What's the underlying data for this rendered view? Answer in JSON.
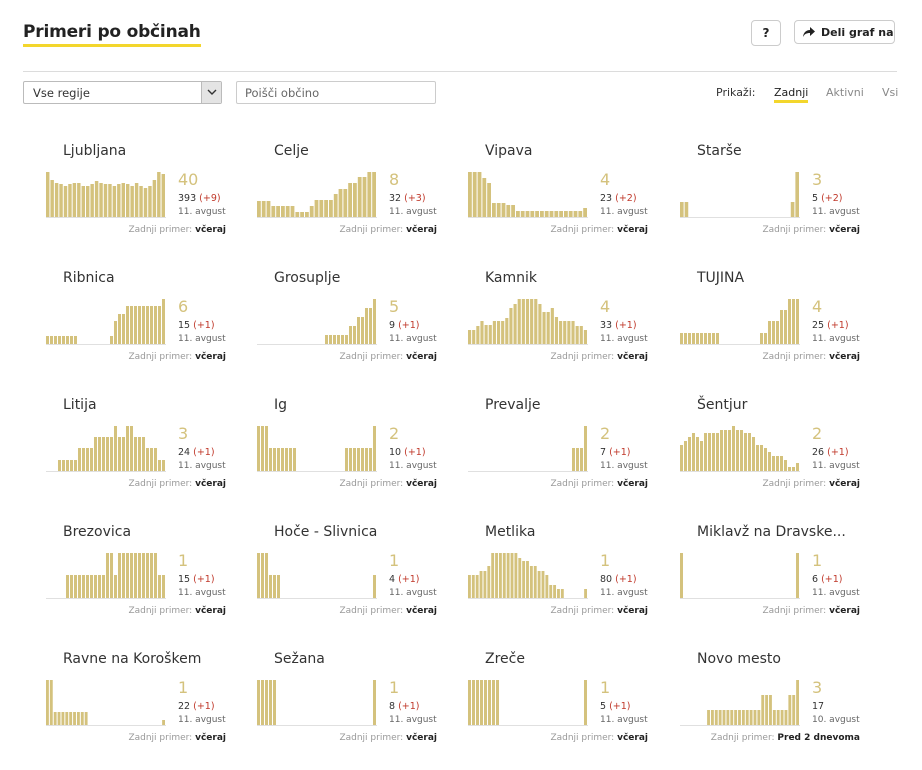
{
  "header": {
    "title": "Primeri po občinah",
    "help_label": "?",
    "share_label": "Deli graf na"
  },
  "controls": {
    "region_select": "Vse regije",
    "search_placeholder": "Poišči občino"
  },
  "filter": {
    "label": "Prikaži:",
    "options": [
      "Zadnji",
      "Aktivni",
      "Vsi"
    ],
    "active": "Zadnji"
  },
  "last_case_label": "Zadnji primer:",
  "colors": {
    "bar": "#d4c27d",
    "increase": "#c0392b",
    "accent": "#f3d62c"
  },
  "municipalities": [
    {
      "name": "Ljubljana",
      "current": "40",
      "total": "393",
      "delta": "(+9)",
      "date": "11. avgust",
      "last": "včeraj",
      "bars": [
        29,
        24,
        22,
        21,
        20,
        21,
        22,
        22,
        20,
        20,
        21,
        23,
        22,
        21,
        21,
        20,
        21,
        22,
        21,
        20,
        22,
        20,
        19,
        20,
        24,
        29,
        28
      ]
    },
    {
      "name": "Celje",
      "current": "8",
      "total": "32",
      "delta": "(+3)",
      "date": "11. avgust",
      "last": "včeraj",
      "bars": [
        10,
        10,
        10,
        7,
        7,
        7,
        7,
        7,
        3,
        3,
        3,
        7,
        11,
        11,
        11,
        11,
        15,
        18,
        18,
        22,
        22,
        26,
        26,
        29,
        29
      ]
    },
    {
      "name": "Vipava",
      "current": "4",
      "total": "23",
      "delta": "(+2)",
      "date": "11. avgust",
      "last": "včeraj",
      "bars": [
        29,
        29,
        29,
        25,
        22,
        9,
        9,
        9,
        8,
        8,
        4,
        4,
        4,
        4,
        4,
        4,
        4,
        4,
        4,
        4,
        4,
        4,
        4,
        4,
        6
      ]
    },
    {
      "name": "Starše",
      "current": "3",
      "total": "5",
      "delta": "(+2)",
      "date": "11. avgust",
      "last": "včeraj",
      "bars": [
        1,
        1,
        0,
        0,
        0,
        0,
        0,
        0,
        0,
        0,
        0,
        0,
        0,
        0,
        0,
        0,
        0,
        0,
        0,
        0,
        0,
        0,
        0,
        0,
        1,
        3
      ]
    },
    {
      "name": "Ribnica",
      "current": "6",
      "total": "15",
      "delta": "(+1)",
      "date": "11. avgust",
      "last": "včeraj",
      "bars": [
        1,
        1,
        1,
        1,
        1,
        1,
        1,
        1,
        0,
        0,
        0,
        0,
        0,
        0,
        0,
        0,
        1,
        3,
        4,
        4,
        5,
        5,
        5,
        5,
        5,
        5,
        5,
        5,
        5,
        6
      ]
    },
    {
      "name": "Grosuplje",
      "current": "5",
      "total": "9",
      "delta": "(+1)",
      "date": "11. avgust",
      "last": "včeraj",
      "bars": [
        0,
        0,
        0,
        0,
        0,
        0,
        0,
        0,
        0,
        0,
        0,
        0,
        0,
        0,
        0,
        0,
        0,
        1,
        1,
        1,
        1,
        1,
        1,
        2,
        2,
        3,
        3,
        4,
        4,
        5
      ]
    },
    {
      "name": "Kamnik",
      "current": "4",
      "total": "33",
      "delta": "(+1)",
      "date": "11. avgust",
      "last": "včeraj",
      "bars": [
        12,
        12,
        15,
        19,
        16,
        16,
        19,
        19,
        19,
        22,
        30,
        34,
        38,
        38,
        38,
        38,
        38,
        34,
        27,
        27,
        30,
        23,
        19,
        19,
        19,
        19,
        15,
        15,
        12
      ]
    },
    {
      "name": "TUJINA",
      "current": "4",
      "total": "25",
      "delta": "(+1)",
      "date": "11. avgust",
      "last": "včeraj",
      "bars": [
        1,
        1,
        1,
        1,
        1,
        1,
        1,
        1,
        1,
        1,
        0,
        0,
        0,
        0,
        0,
        0,
        0,
        0,
        0,
        0,
        1,
        1,
        2,
        2,
        2,
        3,
        3,
        4,
        4,
        4
      ]
    },
    {
      "name": "Litija",
      "current": "3",
      "total": "24",
      "delta": "(+1)",
      "date": "11. avgust",
      "last": "včeraj",
      "bars": [
        0,
        0,
        0,
        1,
        1,
        1,
        1,
        1,
        2,
        2,
        2,
        2,
        3,
        3,
        3,
        3,
        3,
        4,
        3,
        3,
        4,
        4,
        3,
        3,
        3,
        2,
        2,
        2,
        1,
        1
      ]
    },
    {
      "name": "Ig",
      "current": "2",
      "total": "10",
      "delta": "(+1)",
      "date": "11. avgust",
      "last": "včeraj",
      "bars": [
        2,
        2,
        2,
        1,
        1,
        1,
        1,
        1,
        1,
        1,
        0,
        0,
        0,
        0,
        0,
        0,
        0,
        0,
        0,
        0,
        0,
        0,
        1,
        1,
        1,
        1,
        1,
        1,
        1,
        2
      ]
    },
    {
      "name": "Prevalje",
      "current": "2",
      "total": "7",
      "delta": "(+1)",
      "date": "11. avgust",
      "last": "včeraj",
      "bars": [
        0,
        0,
        0,
        0,
        0,
        0,
        0,
        0,
        0,
        0,
        0,
        0,
        0,
        0,
        0,
        0,
        0,
        0,
        0,
        0,
        0,
        0,
        0,
        0,
        0,
        0,
        1,
        1,
        1,
        2
      ]
    },
    {
      "name": "Šentjur",
      "current": "2",
      "total": "26",
      "delta": "(+1)",
      "date": "11. avgust",
      "last": "včeraj",
      "bars": [
        7,
        8,
        9,
        10,
        9,
        8,
        10,
        10,
        10,
        10,
        11,
        11,
        11,
        12,
        11,
        11,
        10,
        10,
        9,
        7,
        7,
        6,
        5,
        4,
        4,
        4,
        3,
        1,
        1,
        2
      ]
    },
    {
      "name": "Brezovica",
      "current": "1",
      "total": "15",
      "delta": "(+1)",
      "date": "11. avgust",
      "last": "včeraj",
      "bars": [
        0,
        0,
        0,
        0,
        0,
        1,
        1,
        1,
        1,
        1,
        1,
        1,
        1,
        1,
        1,
        2,
        2,
        1,
        2,
        2,
        2,
        2,
        2,
        2,
        2,
        2,
        2,
        2,
        1,
        1
      ]
    },
    {
      "name": "Hoče - Slivnica",
      "current": "1",
      "total": "4",
      "delta": "(+1)",
      "date": "11. avgust",
      "last": "včeraj",
      "bars": [
        2,
        2,
        2,
        1,
        1,
        1,
        0,
        0,
        0,
        0,
        0,
        0,
        0,
        0,
        0,
        0,
        0,
        0,
        0,
        0,
        0,
        0,
        0,
        0,
        0,
        0,
        0,
        0,
        0,
        1
      ]
    },
    {
      "name": "Metlika",
      "current": "1",
      "total": "80",
      "delta": "(+1)",
      "date": "11. avgust",
      "last": "včeraj",
      "bars": [
        24,
        24,
        24,
        29,
        29,
        34,
        48,
        48,
        48,
        48,
        48,
        48,
        48,
        43,
        39,
        39,
        34,
        34,
        29,
        29,
        24,
        14,
        14,
        10,
        10,
        0,
        0,
        0,
        0,
        0,
        10
      ]
    },
    {
      "name": "Miklavž na Dravske...",
      "current": "1",
      "total": "6",
      "delta": "(+1)",
      "date": "11. avgust",
      "last": "včeraj",
      "bars": [
        1,
        0,
        0,
        0,
        0,
        0,
        0,
        0,
        0,
        0,
        0,
        0,
        0,
        0,
        0,
        0,
        0,
        0,
        0,
        0,
        0,
        0,
        0,
        0,
        0,
        0,
        0,
        0,
        0,
        1
      ]
    },
    {
      "name": "Ravne na Koroškem",
      "current": "1",
      "total": "22",
      "delta": "(+1)",
      "date": "11. avgust",
      "last": "včeraj",
      "bars": [
        48,
        48,
        14,
        14,
        14,
        14,
        14,
        14,
        14,
        14,
        14,
        0,
        0,
        0,
        0,
        0,
        0,
        0,
        0,
        0,
        0,
        0,
        0,
        0,
        0,
        0,
        0,
        0,
        0,
        0,
        5
      ]
    },
    {
      "name": "Sežana",
      "current": "1",
      "total": "8",
      "delta": "(+1)",
      "date": "11. avgust",
      "last": "včeraj",
      "bars": [
        1,
        1,
        1,
        1,
        1,
        0,
        0,
        0,
        0,
        0,
        0,
        0,
        0,
        0,
        0,
        0,
        0,
        0,
        0,
        0,
        0,
        0,
        0,
        0,
        0,
        0,
        0,
        0,
        0,
        1
      ]
    },
    {
      "name": "Zreče",
      "current": "1",
      "total": "5",
      "delta": "(+1)",
      "date": "11. avgust",
      "last": "včeraj",
      "bars": [
        1,
        1,
        1,
        1,
        1,
        1,
        1,
        1,
        0,
        0,
        0,
        0,
        0,
        0,
        0,
        0,
        0,
        0,
        0,
        0,
        0,
        0,
        0,
        0,
        0,
        0,
        0,
        0,
        0,
        1
      ]
    },
    {
      "name": "Novo mesto",
      "current": "3",
      "total": "17",
      "delta": "",
      "date": "10. avgust",
      "last": "Pred 2 dnevoma",
      "bars": [
        0,
        0,
        0,
        0,
        0,
        0,
        0,
        1,
        1,
        1,
        1,
        1,
        1,
        1,
        1,
        1,
        1,
        1,
        1,
        1,
        1,
        2,
        2,
        2,
        1,
        1,
        1,
        1,
        2,
        2,
        3
      ]
    }
  ]
}
